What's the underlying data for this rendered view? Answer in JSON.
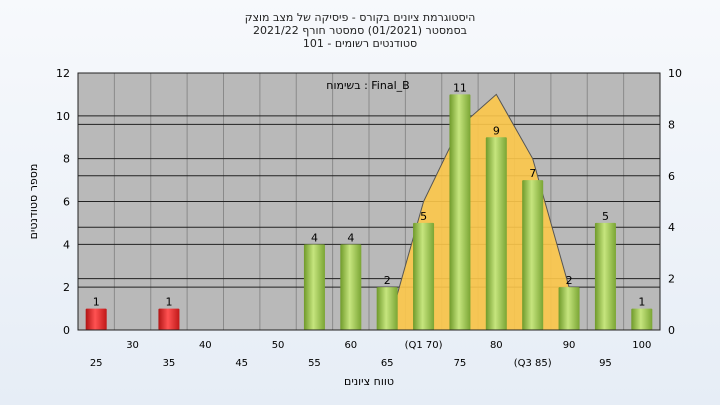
{
  "header": {
    "line1": "היסטוגרמת ציונים בקורס - פיסיקה של מצב מוצק",
    "line2": "בסמסטר  (01/2021)  סמסטר חורף 2021/22",
    "line3": "סטודנטים רשומים - 101"
  },
  "chart_data": {
    "type": "bar",
    "annotation": "בשימוח : Final_B",
    "xlabel": "טווח ציונים",
    "ylabel": "מספר סטודנטים",
    "ylim": [
      0,
      12
    ],
    "y_ticks": [
      0,
      2,
      4,
      6,
      8,
      10,
      12
    ],
    "y2lim": [
      0,
      10
    ],
    "y2_ticks": [
      0,
      2,
      4,
      6,
      8,
      10
    ],
    "categories": [
      "25",
      "30",
      "35",
      "40",
      "45",
      "50",
      "55",
      "60",
      "65",
      "70",
      "75",
      "80",
      "85",
      "90",
      "95",
      "100"
    ],
    "tick_labels_lower": [
      "25",
      "35",
      "45",
      "55",
      "65",
      "75",
      "(Q3 85)",
      "95"
    ],
    "tick_labels_upper": [
      "30",
      "40",
      "50",
      "60",
      "(Q1 70)",
      "80",
      "90",
      "100"
    ],
    "values": [
      1,
      0,
      1,
      0,
      0,
      0,
      4,
      4,
      2,
      5,
      11,
      9,
      7,
      2,
      5,
      1
    ],
    "value_labels": [
      "1",
      "",
      "1",
      "",
      "",
      "",
      "4",
      "4",
      "2",
      "5",
      "11",
      "9",
      "7",
      "2",
      "5",
      "1"
    ],
    "bar_colors": [
      "#e02424",
      "#e02424",
      "#e02424",
      "#e02424",
      "#e02424",
      "#e02424",
      "#8cc43c",
      "#8cc43c",
      "#8cc43c",
      "#8cc43c",
      "#8cc43c",
      "#8cc43c",
      "#8cc43c",
      "#8cc43c",
      "#8cc43c",
      "#8cc43c"
    ],
    "distribution_curve": {
      "x": [
        "65",
        "70",
        "75",
        "80",
        "85",
        "90"
      ],
      "values": [
        0,
        6,
        9.5,
        11,
        8,
        2
      ],
      "color": "#fdc84a"
    },
    "grid": true,
    "plot_background": "#b9b9b9"
  }
}
